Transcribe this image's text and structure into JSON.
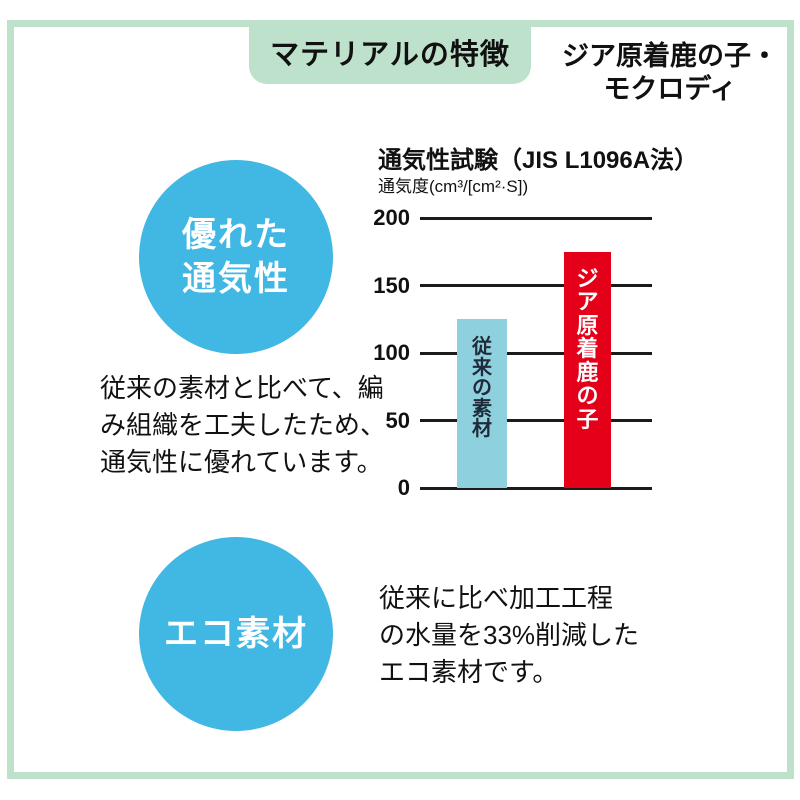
{
  "colors": {
    "frame_green": "#BEE1CC",
    "badge_blue": "#41B7E4",
    "bar_blue": "#8ED0DD",
    "bar_red": "#E5001A",
    "bar_blue_label": "#1F2B3A",
    "bar_red_label": "#FFFFFF",
    "text": "#111111"
  },
  "header": {
    "tab_label": "マテリアルの特徴",
    "material_name": [
      "ジア原着鹿の子・",
      "モクロディ"
    ]
  },
  "breathability": {
    "badge_lines": [
      "優れた",
      "通気性"
    ],
    "description_lines": [
      "従来の素材と比べて、編",
      "み組織を工夫したため、",
      "通気性に優れています。"
    ]
  },
  "eco": {
    "badge_label": "エコ素材",
    "description_lines": [
      "従来に比べ加工工程",
      "の水量を33%削減した",
      "エコ素材です。"
    ]
  },
  "chart_data": {
    "type": "bar",
    "title": "通気性試験（JIS L1096A法）",
    "ylabel": "通気度(cm³/[cm²·S])",
    "categories": [
      "従来の素材",
      "ジア原着鹿の子"
    ],
    "values": [
      125,
      175
    ],
    "ylim": [
      0,
      200
    ],
    "yticks": [
      0,
      50,
      100,
      150,
      200
    ],
    "bar_colors": [
      "#8ED0DD",
      "#E5001A"
    ],
    "label_colors": [
      "#1F2B3A",
      "#FFFFFF"
    ],
    "grid": true,
    "legend": "none"
  }
}
